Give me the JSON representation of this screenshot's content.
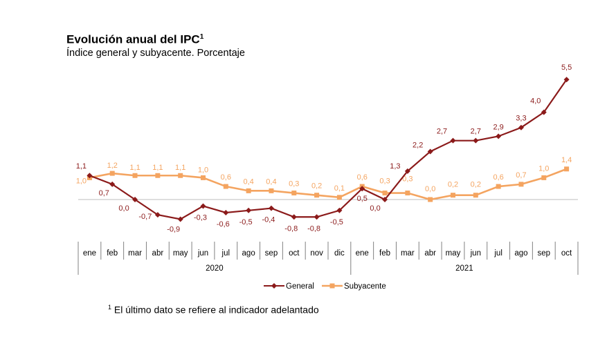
{
  "header": {
    "title": "Evolución anual del IPC",
    "title_sup": "1",
    "subtitle": "Índice general y subyacente. Porcentaje"
  },
  "footnote": {
    "sup": "1",
    "text": " El último dato se refiere al indicador adelantado"
  },
  "colors": {
    "general": "#8B1A1A",
    "subyacente": "#F4A460",
    "axis": "#808080"
  },
  "chart_data": {
    "type": "line",
    "categories": [
      "ene",
      "feb",
      "mar",
      "abr",
      "may",
      "jun",
      "jul",
      "ago",
      "sep",
      "oct",
      "nov",
      "dic",
      "ene",
      "feb",
      "mar",
      "abr",
      "may",
      "jun",
      "jul",
      "ago",
      "sep",
      "oct"
    ],
    "year_groups": [
      {
        "label": "2020",
        "start": 0,
        "end": 11
      },
      {
        "label": "2021",
        "start": 12,
        "end": 21
      }
    ],
    "series": [
      {
        "name": "General",
        "color": "#8B1A1A",
        "marker": "diamond",
        "values": [
          1.1,
          0.7,
          0.0,
          -0.7,
          -0.9,
          -0.3,
          -0.6,
          -0.5,
          -0.4,
          -0.8,
          -0.8,
          -0.5,
          0.5,
          0.0,
          1.3,
          2.2,
          2.7,
          2.7,
          2.9,
          3.3,
          4.0,
          5.5
        ],
        "labels": [
          "1,1",
          "0,7",
          "0,0",
          "-0,7",
          "-0,9",
          "-0,3",
          "-0,6",
          "-0,5",
          "-0,4",
          "-0,8",
          "-0,8",
          "-0,5",
          "0,5",
          "0,0",
          "1,3",
          "2,2",
          "2,7",
          "2,7",
          "2,9",
          "3,3",
          "4,0",
          "5,5"
        ]
      },
      {
        "name": "Subyacente",
        "color": "#F4A460",
        "marker": "square",
        "values": [
          1.0,
          1.2,
          1.1,
          1.1,
          1.1,
          1.0,
          0.6,
          0.4,
          0.4,
          0.3,
          0.2,
          0.1,
          0.6,
          0.3,
          0.3,
          0.0,
          0.2,
          0.2,
          0.6,
          0.7,
          1.0,
          1.4
        ],
        "labels": [
          "1,0",
          "1,2",
          "1,1",
          "1,1",
          "1,1",
          "1,0",
          "0,6",
          "0,4",
          "0,4",
          "0,3",
          "0,2",
          "0,1",
          "0,6",
          "0,3",
          "0,3",
          "0,0",
          "0,2",
          "0,2",
          "0,6",
          "0,7",
          "1,0",
          "1,4"
        ]
      }
    ],
    "ylim": [
      -1.0,
      6.0
    ],
    "legend_position": "bottom"
  }
}
